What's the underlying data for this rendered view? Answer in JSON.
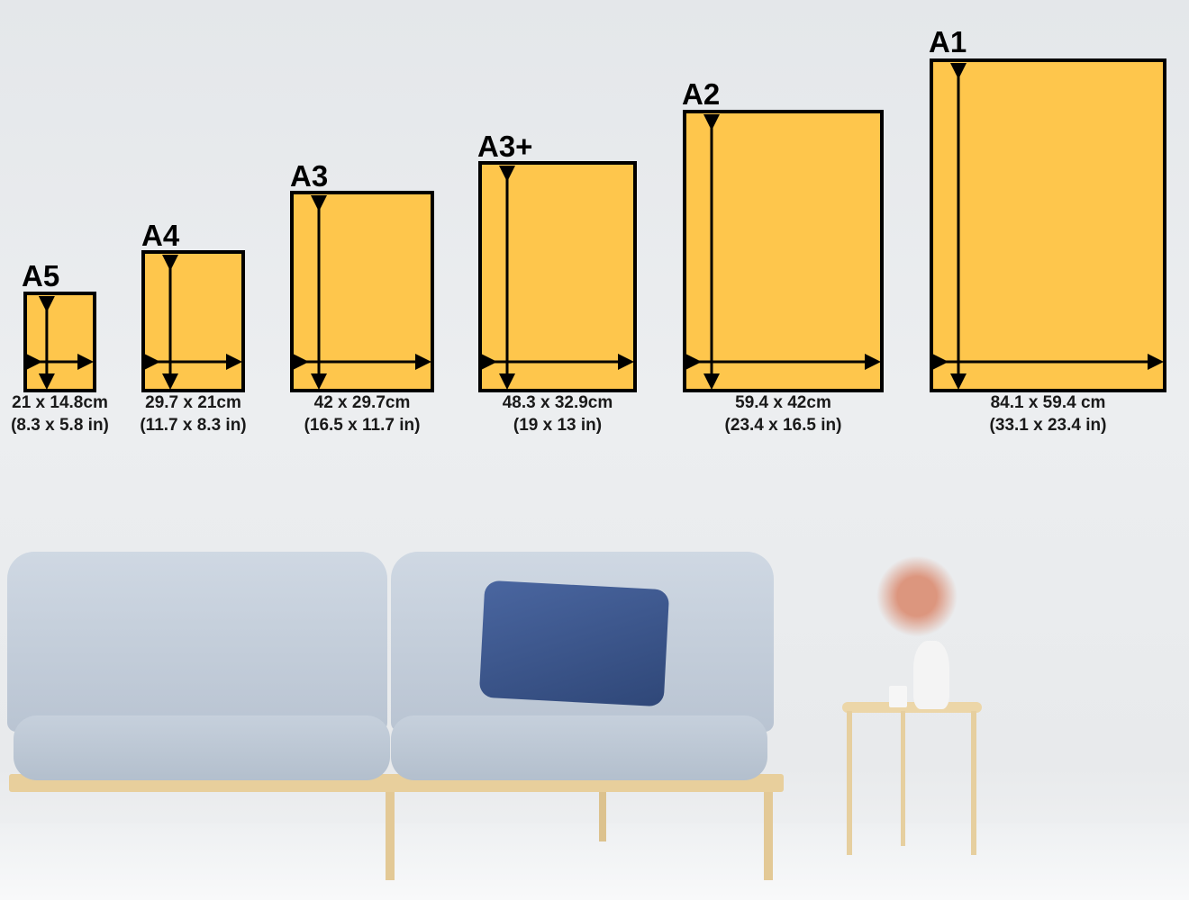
{
  "sizes": [
    {
      "name": "A5",
      "cm": "21 x 14.8cm",
      "in": "(8.3 x 5.8 in)"
    },
    {
      "name": "A4",
      "cm": "29.7 x 21cm",
      "in": "(11.7 x 8.3 in)"
    },
    {
      "name": "A3",
      "cm": "42 x 29.7cm",
      "in": "(16.5 x 11.7 in)"
    },
    {
      "name": "A3+",
      "cm": "48.3 x 32.9cm",
      "in": "(19 x 13 in)"
    },
    {
      "name": "A2",
      "cm": "59.4 x 42cm",
      "in": "(23.4 x 16.5 in)"
    },
    {
      "name": "A1",
      "cm": "84.1 x 59.4 cm",
      "in": "(33.1 x 23.4 in)"
    }
  ],
  "colors": {
    "frame_fill": "#fec64c",
    "frame_border": "#000000",
    "sofa": "#c9d3df",
    "pillow": "#3a5586",
    "wood": "#e8cf9c"
  }
}
